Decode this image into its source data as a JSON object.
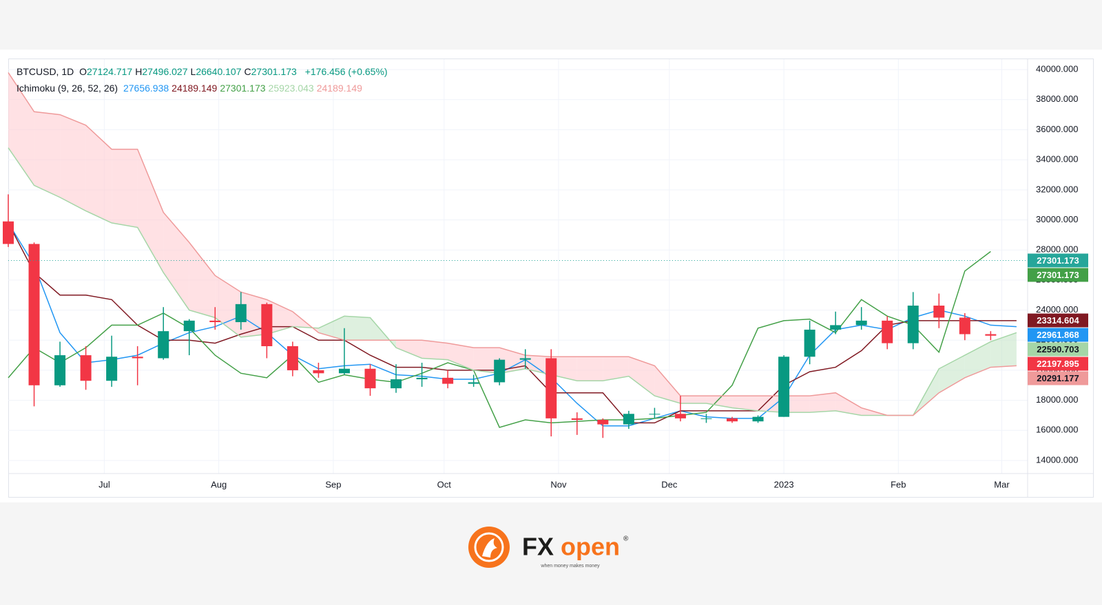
{
  "chart_data": {
    "type": "candlestick",
    "header": {
      "symbol": "BTCUSD, 1D",
      "ohlc_labels": [
        "O",
        "H",
        "L",
        "C"
      ],
      "ohlc_values": [
        27124.717,
        27496.027,
        26640.107,
        27301.173
      ],
      "change": "+176.456 (+0.65%)",
      "indicator": "Ichimoku (9, 26, 52, 26)"
    },
    "x": [
      0,
      7,
      14,
      21,
      28,
      35,
      42,
      49,
      56,
      63,
      70,
      77,
      84,
      91,
      98,
      105,
      112,
      119,
      126,
      133,
      140,
      147,
      154,
      161,
      168,
      175,
      182,
      189,
      196,
      203,
      210,
      217,
      224,
      231,
      238,
      245,
      252,
      259,
      266,
      273
    ],
    "open": [
      29900,
      28400,
      19000,
      21000,
      19300,
      20900,
      20800,
      22600,
      23300,
      23200,
      24400,
      21600,
      20000,
      19800,
      20100,
      18800,
      19400,
      19500,
      19100,
      19200,
      20700,
      20800,
      16800,
      16700,
      16400,
      17100,
      17100,
      16800,
      16800,
      16600,
      16900,
      20900,
      22700,
      23000,
      23300,
      21800,
      24300,
      23500,
      22400,
      null
    ],
    "high": [
      31700,
      28500,
      21900,
      21600,
      22300,
      21600,
      24200,
      23400,
      24200,
      25200,
      24500,
      21900,
      20500,
      22800,
      20400,
      20400,
      20500,
      20000,
      19700,
      20800,
      21400,
      21400,
      17200,
      16800,
      17300,
      17500,
      18300,
      17100,
      16900,
      17000,
      21000,
      23300,
      23900,
      24200,
      23600,
      25200,
      25100,
      23800,
      22600,
      null
    ],
    "low": [
      28200,
      17600,
      18900,
      18700,
      18900,
      19000,
      20700,
      21000,
      22700,
      22700,
      20800,
      19600,
      19500,
      19700,
      18300,
      18500,
      18900,
      18800,
      18900,
      19000,
      20100,
      15600,
      15700,
      15500,
      16100,
      16800,
      16600,
      16500,
      16500,
      16500,
      16900,
      20400,
      22400,
      22700,
      21400,
      21400,
      22800,
      22000,
      22000,
      null
    ],
    "close": [
      28400,
      19000,
      21000,
      19300,
      20900,
      20800,
      22600,
      23300,
      23200,
      24400,
      21600,
      20000,
      19800,
      20100,
      18800,
      19400,
      19500,
      19100,
      19200,
      20700,
      20800,
      16800,
      16700,
      16400,
      17100,
      17100,
      16800,
      16800,
      16600,
      16900,
      20900,
      22700,
      23000,
      23300,
      21800,
      24300,
      23500,
      22400,
      22300,
      null
    ],
    "up_color": "#089981",
    "down_color": "#f23645",
    "series": [
      {
        "color": "#2196f3",
        "legend_value": 27656.938,
        "values": [
          29800,
          27000,
          22500,
          20500,
          20700,
          21000,
          21800,
          22500,
          22900,
          23600,
          22500,
          21000,
          20100,
          20300,
          20400,
          19700,
          19600,
          19400,
          19400,
          19800,
          20700,
          19500,
          17800,
          16300,
          16300,
          16800,
          17300,
          16900,
          16800,
          16800,
          18200,
          21000,
          22700,
          23000,
          22700,
          23500,
          24000,
          23600,
          23000,
          22900
        ]
      },
      {
        "color": "#801922",
        "legend_value": 24189.149,
        "values": [
          29800,
          26500,
          25000,
          25000,
          24700,
          23000,
          22000,
          22000,
          21800,
          22400,
          22900,
          22900,
          22000,
          22000,
          21000,
          20200,
          20200,
          20000,
          20000,
          20000,
          20300,
          18500,
          18500,
          18500,
          16500,
          16500,
          17300,
          17300,
          17300,
          17300,
          19000,
          19900,
          20200,
          21300,
          23000,
          23300,
          23300,
          23300,
          23300,
          23300
        ]
      },
      {
        "color": "#43a047",
        "legend_value": 27301.173,
        "values": [
          19500,
          21500,
          20500,
          21500,
          23000,
          23000,
          23800,
          22800,
          21000,
          19800,
          19500,
          21000,
          19200,
          19700,
          19400,
          19200,
          19800,
          20500,
          20000,
          16200,
          16700,
          16500,
          16600,
          16700,
          16700,
          16800,
          17000,
          17200,
          19000,
          22800,
          23300,
          23400,
          22500,
          24700,
          23600,
          23000,
          21200,
          26600,
          27900,
          null
        ]
      },
      {
        "color": "#a5d6a7",
        "legend_value": 25923.043,
        "values": [
          34800,
          32300,
          31500,
          30600,
          29800,
          29500,
          26500,
          24000,
          23500,
          22200,
          22400,
          22900,
          22800,
          23600,
          23500,
          21500,
          20800,
          20700,
          20000,
          19800,
          20100,
          19700,
          19300,
          19300,
          19600,
          18300,
          17800,
          17800,
          17500,
          17300,
          17200,
          17200,
          17300,
          17000,
          17000,
          17000,
          20100,
          21000,
          21900,
          22500
        ]
      },
      {
        "color": "#ef9a9a",
        "legend_value": 24189.149,
        "values": [
          39800,
          37200,
          37000,
          36300,
          34700,
          34700,
          30500,
          28500,
          26300,
          25200,
          24700,
          23900,
          22500,
          22000,
          22000,
          22000,
          22000,
          21800,
          21500,
          21500,
          21000,
          20900,
          20900,
          20900,
          20900,
          20300,
          18300,
          18300,
          18300,
          18300,
          18300,
          18300,
          18500,
          17500,
          17000,
          17000,
          18500,
          19500,
          20200,
          20300
        ]
      }
    ],
    "cloud_up_color": "#c8e6c9",
    "cloud_down_color": "#ffcdd2",
    "xlim": [
      0,
      276
    ],
    "xticks": [
      {
        "value": 26,
        "label": "Jul"
      },
      {
        "value": 57,
        "label": "Aug"
      },
      {
        "value": 88,
        "label": "Sep"
      },
      {
        "value": 118,
        "label": "Oct"
      },
      {
        "value": 149,
        "label": "Nov"
      },
      {
        "value": 179,
        "label": "Dec"
      },
      {
        "value": 210,
        "label": "2023"
      },
      {
        "value": 241,
        "label": "Feb"
      },
      {
        "value": 269,
        "label": "Mar"
      }
    ],
    "ylim": [
      13130,
      40690
    ],
    "yticks": [
      {
        "value": 14000,
        "label": "14000.000"
      },
      {
        "value": 16000,
        "label": "16000.000"
      },
      {
        "value": 18000,
        "label": "18000.000"
      },
      {
        "value": 20000,
        "label": "20000.000"
      },
      {
        "value": 22000,
        "label": "22000.000"
      },
      {
        "value": 24000,
        "label": "24000.000"
      },
      {
        "value": 26000,
        "label": "26000.000"
      },
      {
        "value": 28000,
        "label": "28000.000"
      },
      {
        "value": 30000,
        "label": "30000.000"
      },
      {
        "value": 32000,
        "label": "32000.000"
      },
      {
        "value": 34000,
        "label": "34000.000"
      },
      {
        "value": 36000,
        "label": "36000.000"
      },
      {
        "value": 38000,
        "label": "38000.000"
      },
      {
        "value": 40000,
        "label": "40000.000"
      }
    ],
    "grid": true,
    "price_tags": [
      {
        "value": 27301.173,
        "color": "#26a69a",
        "text_color": "#ffffff"
      },
      {
        "value": 27301.173,
        "color": "#43a047",
        "text_color": "#ffffff"
      },
      {
        "value": 23314.604,
        "color": "#801922",
        "text_color": "#ffffff"
      },
      {
        "value": 22961.868,
        "color": "#2196f3",
        "text_color": "#ffffff"
      },
      {
        "value": 22590.703,
        "color": "#a5d6a7",
        "text_color": "#131722"
      },
      {
        "value": 22197.895,
        "color": "#f23645",
        "text_color": "#ffffff"
      },
      {
        "value": 20291.177,
        "color": "#ef9a9a",
        "text_color": "#131722"
      }
    ]
  },
  "logo": {
    "brand_dark": "FX",
    "brand_light": "open",
    "mark": "®",
    "tagline": "when money makes money"
  }
}
